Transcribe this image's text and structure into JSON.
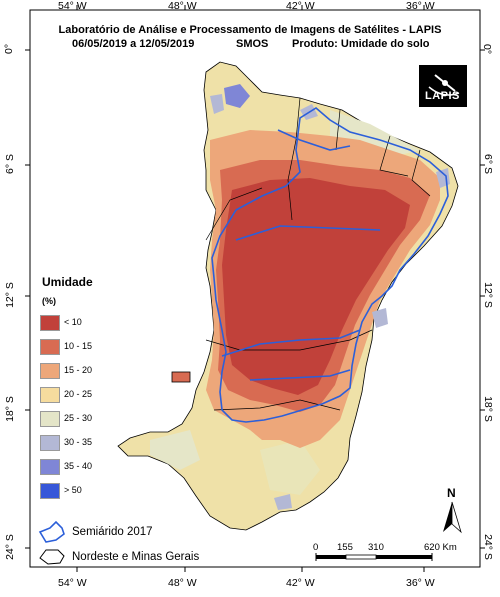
{
  "title": {
    "line1": "Laboratório de Análise e Processamento de Imagens de Satélites - LAPIS",
    "line2_dates": "06/05/2019  a 12/05/2019",
    "line2_sensor": "SMOS",
    "line2_product": "Produto: Umidade do solo"
  },
  "logo": {
    "text": "LAPIS"
  },
  "longitude_ticks": [
    "54° W",
    "48° W",
    "42° W",
    "36° W"
  ],
  "latitude_ticks": [
    "0°",
    "6° S",
    "12° S",
    "18° S",
    "24° S"
  ],
  "legend": {
    "title": "Umidade",
    "unit": "(%)",
    "items": [
      {
        "label": "< 10",
        "color": "#c1413a"
      },
      {
        "label": "10 - 15",
        "color": "#d86b52"
      },
      {
        "label": "15 - 20",
        "color": "#eda77a"
      },
      {
        "label": "20 - 25",
        "color": "#f6dc9e"
      },
      {
        "label": "25 - 30",
        "color": "#e4e5c8"
      },
      {
        "label": "30 - 35",
        "color": "#b3b8d5"
      },
      {
        "label": "35 - 40",
        "color": "#7f86d6"
      },
      {
        "label": "> 50",
        "color": "#3657d8"
      }
    ]
  },
  "boundaries_legend": {
    "semiarid": "Semiárido 2017",
    "region": "Nordeste e Minas Gerais"
  },
  "north_arrow": {
    "label": "N"
  },
  "scale_bar": {
    "ticks": [
      "0",
      "155",
      "310",
      "620 Km"
    ]
  },
  "colors": {
    "semiarid_line": "#2c5fd9",
    "state_line": "#000000"
  }
}
